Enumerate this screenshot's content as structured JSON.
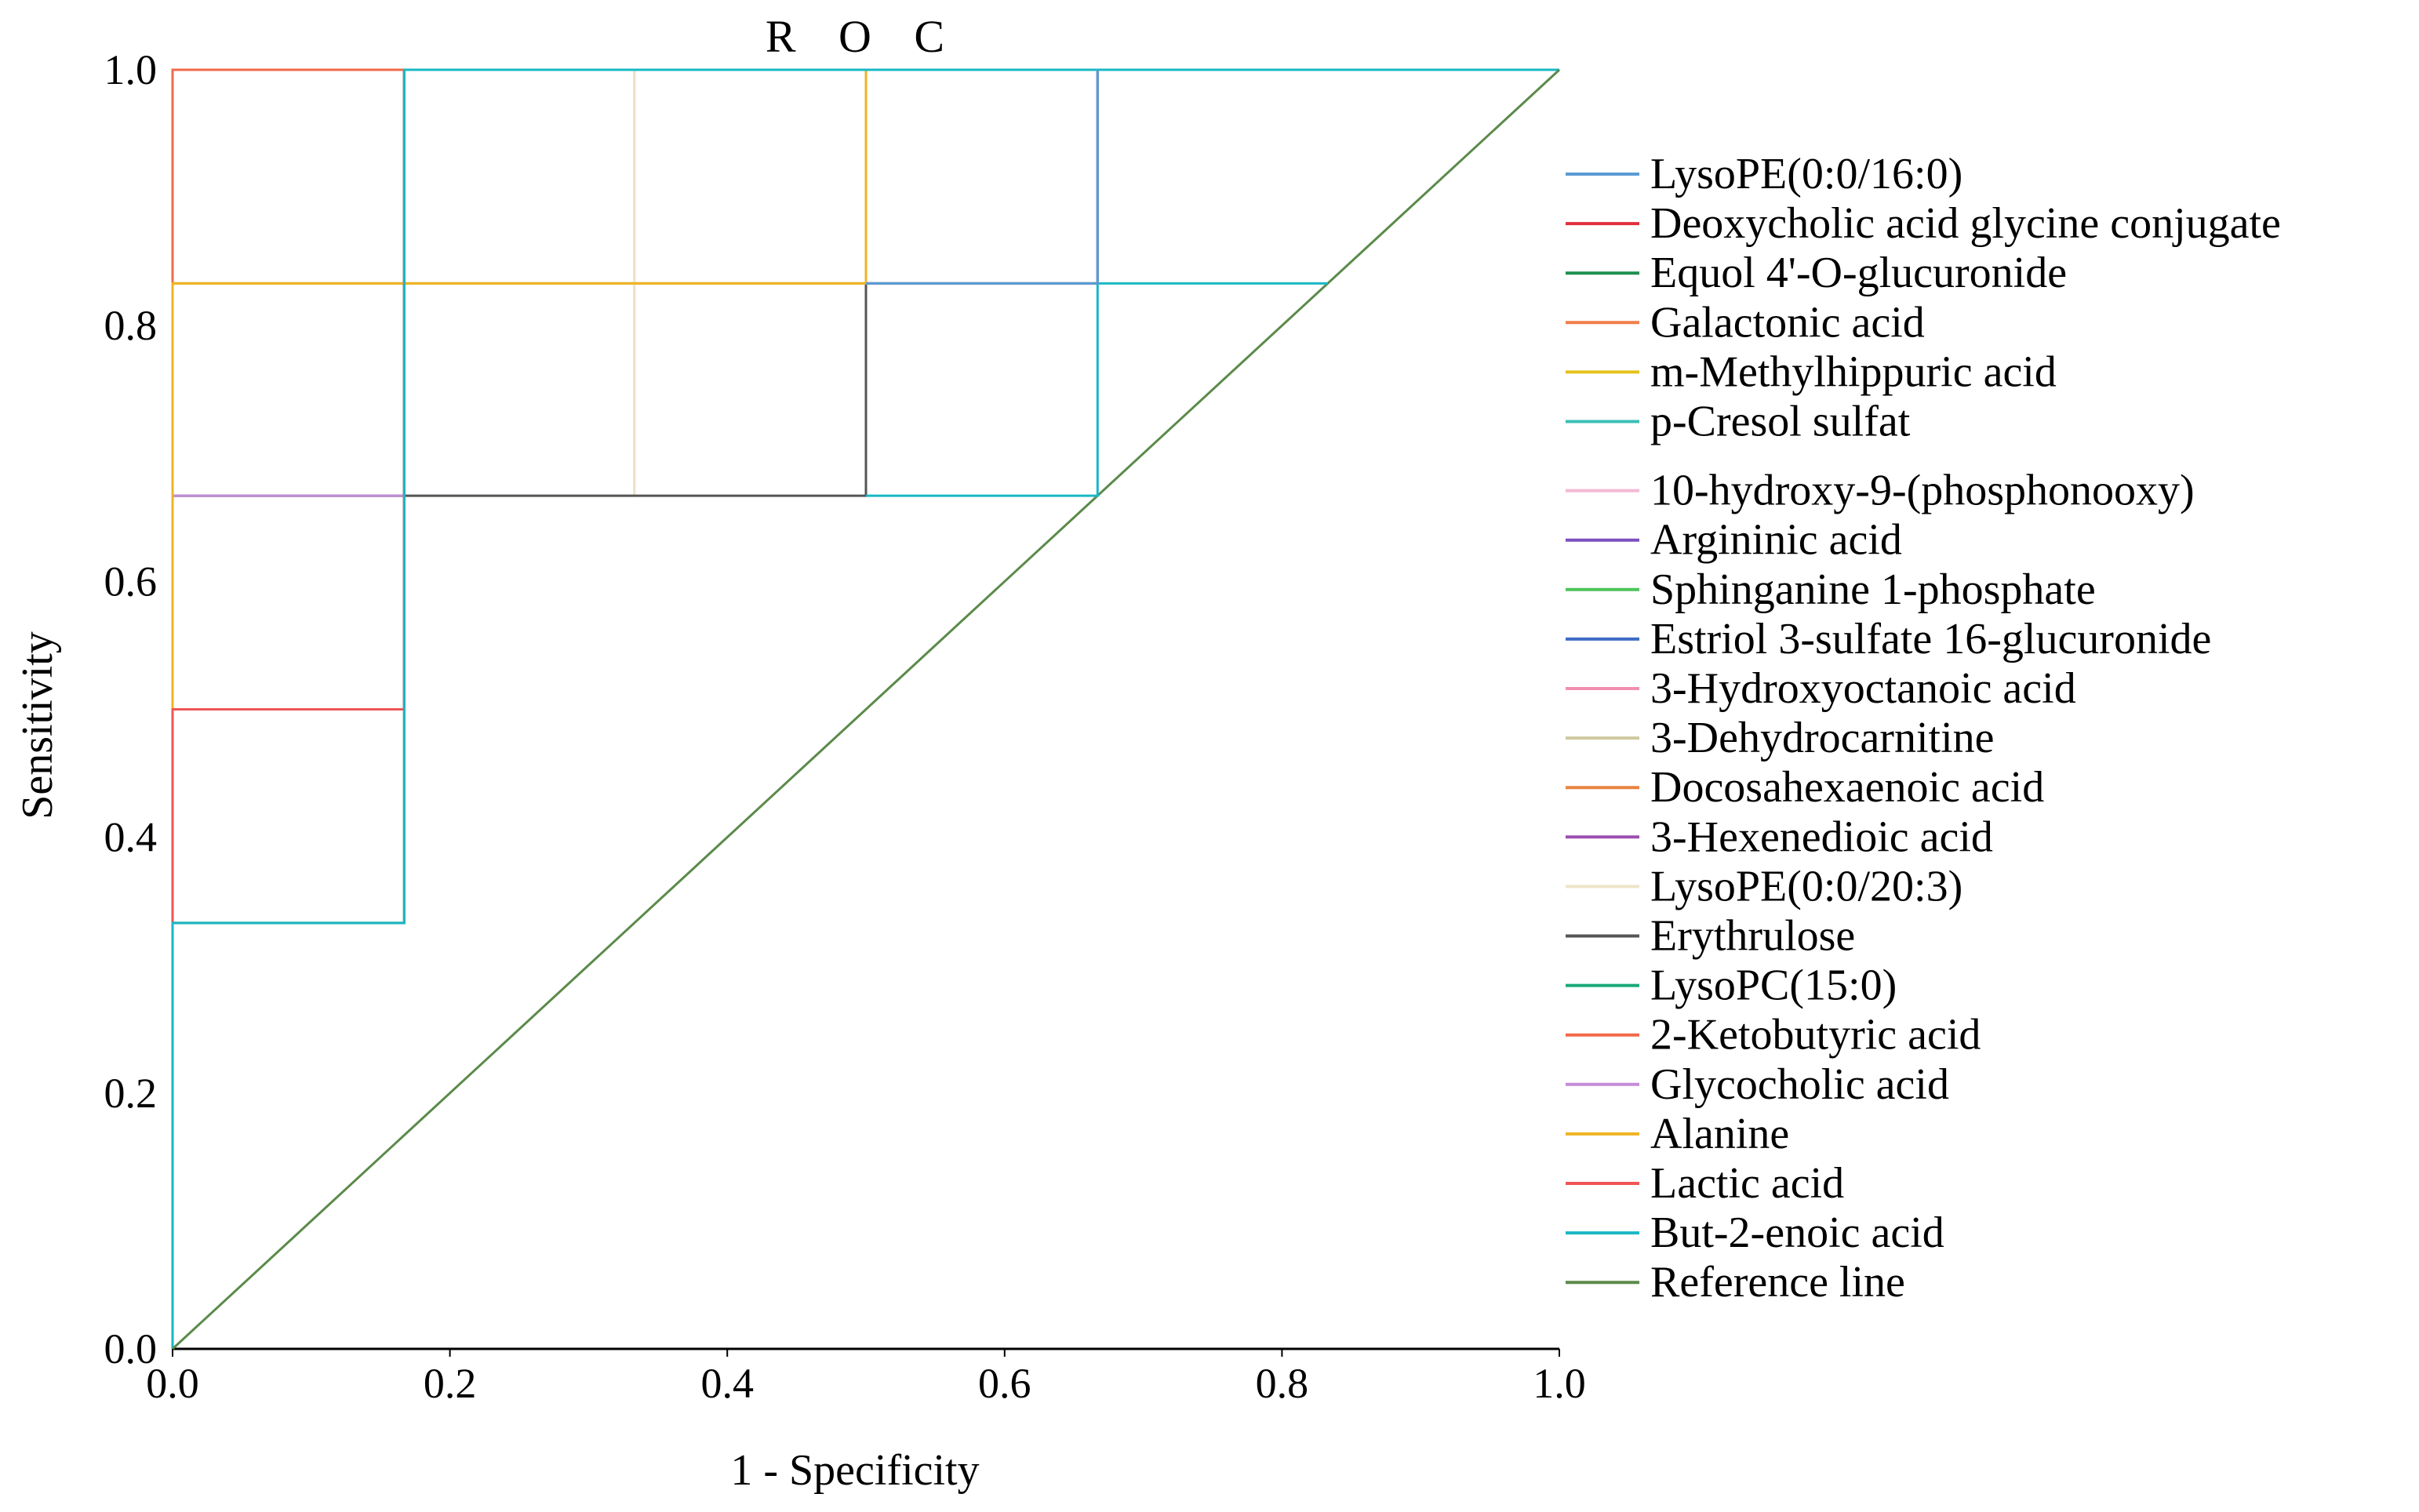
{
  "chart_data": {
    "type": "line",
    "title": "R O C",
    "xlabel": "1 - Specificity",
    "ylabel": "Sensitivity",
    "xlim": [
      0,
      1
    ],
    "ylim": [
      0,
      1
    ],
    "x_ticks": [
      "0.0",
      "0.2",
      "0.4",
      "0.6",
      "0.8",
      "1.0"
    ],
    "y_ticks": [
      "0.0",
      "0.2",
      "0.4",
      "0.6",
      "0.8",
      "1.0"
    ],
    "grid": false,
    "legend_position": "right",
    "series": [
      {
        "name": "LysoPE(0:0/16:0)",
        "color": "#5b9bd5",
        "points": [
          [
            0,
            0
          ],
          [
            0,
            0.333
          ],
          [
            0,
            0.667
          ],
          [
            0,
            0.833
          ],
          [
            0.167,
            0.833
          ],
          [
            0.5,
            0.833
          ],
          [
            0.667,
            0.833
          ],
          [
            0.667,
            1
          ],
          [
            1,
            1
          ]
        ]
      },
      {
        "name": "Deoxycholic acid glycine conjugate",
        "color": "#e0303a",
        "points": [
          [
            0,
            0
          ],
          [
            0,
            0.333
          ],
          [
            0,
            0.5
          ],
          [
            0.167,
            0.5
          ],
          [
            0.167,
            0.667
          ],
          [
            0.167,
            1
          ],
          [
            1,
            1
          ]
        ]
      },
      {
        "name": "Equol 4'-O-glucuronide",
        "color": "#1f8f4e",
        "points": [
          [
            0,
            0
          ],
          [
            0,
            0.333
          ],
          [
            0,
            0.667
          ],
          [
            0.167,
            0.667
          ],
          [
            0.167,
            1
          ],
          [
            1,
            1
          ]
        ]
      },
      {
        "name": "Galactonic acid",
        "color": "#f07e4a",
        "points": [
          [
            0,
            0
          ],
          [
            0,
            0.333
          ],
          [
            0,
            0.667
          ],
          [
            0,
            1
          ],
          [
            1,
            1
          ]
        ]
      },
      {
        "name": "m-Methylhippuric acid",
        "color": "#e4c21a",
        "points": [
          [
            0,
            0
          ],
          [
            0,
            0.333
          ],
          [
            0,
            0.833
          ],
          [
            0.167,
            0.833
          ],
          [
            0.5,
            0.833
          ],
          [
            0.5,
            1
          ],
          [
            1,
            1
          ]
        ]
      },
      {
        "name": "p-Cresol sulfat",
        "color": "#3cbfb4",
        "points": [
          [
            0,
            0
          ],
          [
            0,
            0.333
          ],
          [
            0,
            0.667
          ],
          [
            0.167,
            0.667
          ],
          [
            0.167,
            1
          ],
          [
            1,
            1
          ]
        ]
      },
      {
        "name": "10-hydroxy-9-(phosphonooxy)",
        "color": "#f4b8d4",
        "points": [
          [
            0,
            0
          ],
          [
            0,
            0.333
          ],
          [
            0,
            0.667
          ],
          [
            0.167,
            0.667
          ],
          [
            0.167,
            1
          ],
          [
            1,
            1
          ]
        ]
      },
      {
        "name": "Argininic acid",
        "color": "#7b4fbf",
        "points": [
          [
            0,
            0
          ],
          [
            0,
            0.333
          ],
          [
            0,
            0.667
          ],
          [
            0.167,
            0.667
          ],
          [
            0.167,
            1
          ],
          [
            1,
            1
          ]
        ]
      },
      {
        "name": "Sphinganine 1-phosphate",
        "color": "#4cc45a",
        "points": [
          [
            0,
            0
          ],
          [
            0,
            0.333
          ],
          [
            0,
            0.667
          ],
          [
            0.167,
            0.667
          ],
          [
            0.167,
            1
          ],
          [
            1,
            1
          ]
        ]
      },
      {
        "name": "Estriol 3-sulfate 16-glucuronide",
        "color": "#3c6bc4",
        "points": [
          [
            0,
            0
          ],
          [
            0,
            0.333
          ],
          [
            0,
            0.667
          ],
          [
            0.167,
            0.667
          ],
          [
            0.167,
            1
          ],
          [
            1,
            1
          ]
        ]
      },
      {
        "name": "3-Hydroxyoctanoic acid",
        "color": "#f28fb0",
        "points": [
          [
            0,
            0
          ],
          [
            0,
            0.333
          ],
          [
            0,
            0.667
          ],
          [
            0.167,
            0.667
          ],
          [
            0.167,
            1
          ],
          [
            1,
            1
          ]
        ]
      },
      {
        "name": "3-Dehydrocarnitine",
        "color": "#cfc8a0",
        "points": [
          [
            0,
            0
          ],
          [
            0,
            0.333
          ],
          [
            0,
            0.667
          ],
          [
            0.167,
            0.667
          ],
          [
            0.333,
            0.667
          ],
          [
            0.333,
            0.833
          ],
          [
            0.333,
            1
          ],
          [
            1,
            1
          ]
        ]
      },
      {
        "name": "Docosahexaenoic acid",
        "color": "#e88440",
        "points": [
          [
            0,
            0
          ],
          [
            0,
            0.333
          ],
          [
            0,
            0.667
          ],
          [
            0.167,
            0.667
          ],
          [
            0.167,
            1
          ],
          [
            1,
            1
          ]
        ]
      },
      {
        "name": "3-Hexenedioic acid",
        "color": "#9b4fb0",
        "points": [
          [
            0,
            0
          ],
          [
            0,
            0.333
          ],
          [
            0,
            0.667
          ],
          [
            0.167,
            0.667
          ],
          [
            0.167,
            1
          ],
          [
            1,
            1
          ]
        ]
      },
      {
        "name": "LysoPE(0:0/20:3)",
        "color": "#eee4c8",
        "points": [
          [
            0,
            0
          ],
          [
            0,
            0.333
          ],
          [
            0,
            0.667
          ],
          [
            0.167,
            0.667
          ],
          [
            0.333,
            0.667
          ],
          [
            0.333,
            1
          ],
          [
            1,
            1
          ]
        ]
      },
      {
        "name": "Erythrulose",
        "color": "#555555",
        "points": [
          [
            0,
            0
          ],
          [
            0,
            0.333
          ],
          [
            0.167,
            0.333
          ],
          [
            0.167,
            0.667
          ],
          [
            0.5,
            0.667
          ],
          [
            0.5,
            0.833
          ],
          [
            0.667,
            0.833
          ],
          [
            0.667,
            1
          ],
          [
            1,
            1
          ]
        ]
      },
      {
        "name": "LysoPC(15:0)",
        "color": "#1aa87a",
        "points": [
          [
            0,
            0
          ],
          [
            0,
            0.333
          ],
          [
            0,
            0.667
          ],
          [
            0.167,
            0.667
          ],
          [
            0.167,
            1
          ],
          [
            1,
            1
          ]
        ]
      },
      {
        "name": "2-Ketobutyric acid",
        "color": "#f06a4a",
        "points": [
          [
            0,
            0
          ],
          [
            0,
            0.333
          ],
          [
            0,
            0.667
          ],
          [
            0,
            1
          ],
          [
            1,
            1
          ]
        ]
      },
      {
        "name": "Glycocholic acid",
        "color": "#c58bd8",
        "points": [
          [
            0,
            0
          ],
          [
            0,
            0.333
          ],
          [
            0,
            0.667
          ],
          [
            0.167,
            0.667
          ],
          [
            0.167,
            1
          ],
          [
            1,
            1
          ]
        ]
      },
      {
        "name": "Alanine",
        "color": "#f0b323",
        "points": [
          [
            0,
            0
          ],
          [
            0,
            0.333
          ],
          [
            0,
            0.667
          ],
          [
            0,
            0.833
          ],
          [
            0.167,
            0.833
          ],
          [
            0.5,
            0.833
          ],
          [
            0.5,
            1
          ],
          [
            1,
            1
          ]
        ]
      },
      {
        "name": "Lactic acid",
        "color": "#ee5555",
        "points": [
          [
            0,
            0
          ],
          [
            0,
            0.333
          ],
          [
            0,
            0.5
          ],
          [
            0.167,
            0.5
          ],
          [
            0.167,
            1
          ],
          [
            1,
            1
          ]
        ]
      },
      {
        "name": "But-2-enoic acid",
        "color": "#19b8c4",
        "points": [
          [
            0,
            0
          ],
          [
            0,
            0.333
          ],
          [
            0.167,
            0.333
          ],
          [
            0.167,
            0.667
          ],
          [
            0.167,
            1
          ],
          [
            1,
            1
          ]
        ]
      },
      {
        "name": "Reference line",
        "color": "#5b8a4a",
        "points": [
          [
            0,
            0
          ],
          [
            1,
            1
          ]
        ]
      }
    ],
    "extra_segments": [
      {
        "series": "But-2-enoic acid",
        "color": "#19b8c4",
        "points": [
          [
            0.5,
            0.667
          ],
          [
            0.667,
            0.667
          ],
          [
            0.667,
            0.833
          ],
          [
            0.833,
            0.833
          ]
        ]
      },
      {
        "series": "LysoPE(0:0/16:0)",
        "color": "#5b9bd5",
        "points": [
          [
            0.5,
            0.833
          ],
          [
            0.667,
            0.833
          ],
          [
            0.667,
            1
          ]
        ]
      }
    ]
  }
}
